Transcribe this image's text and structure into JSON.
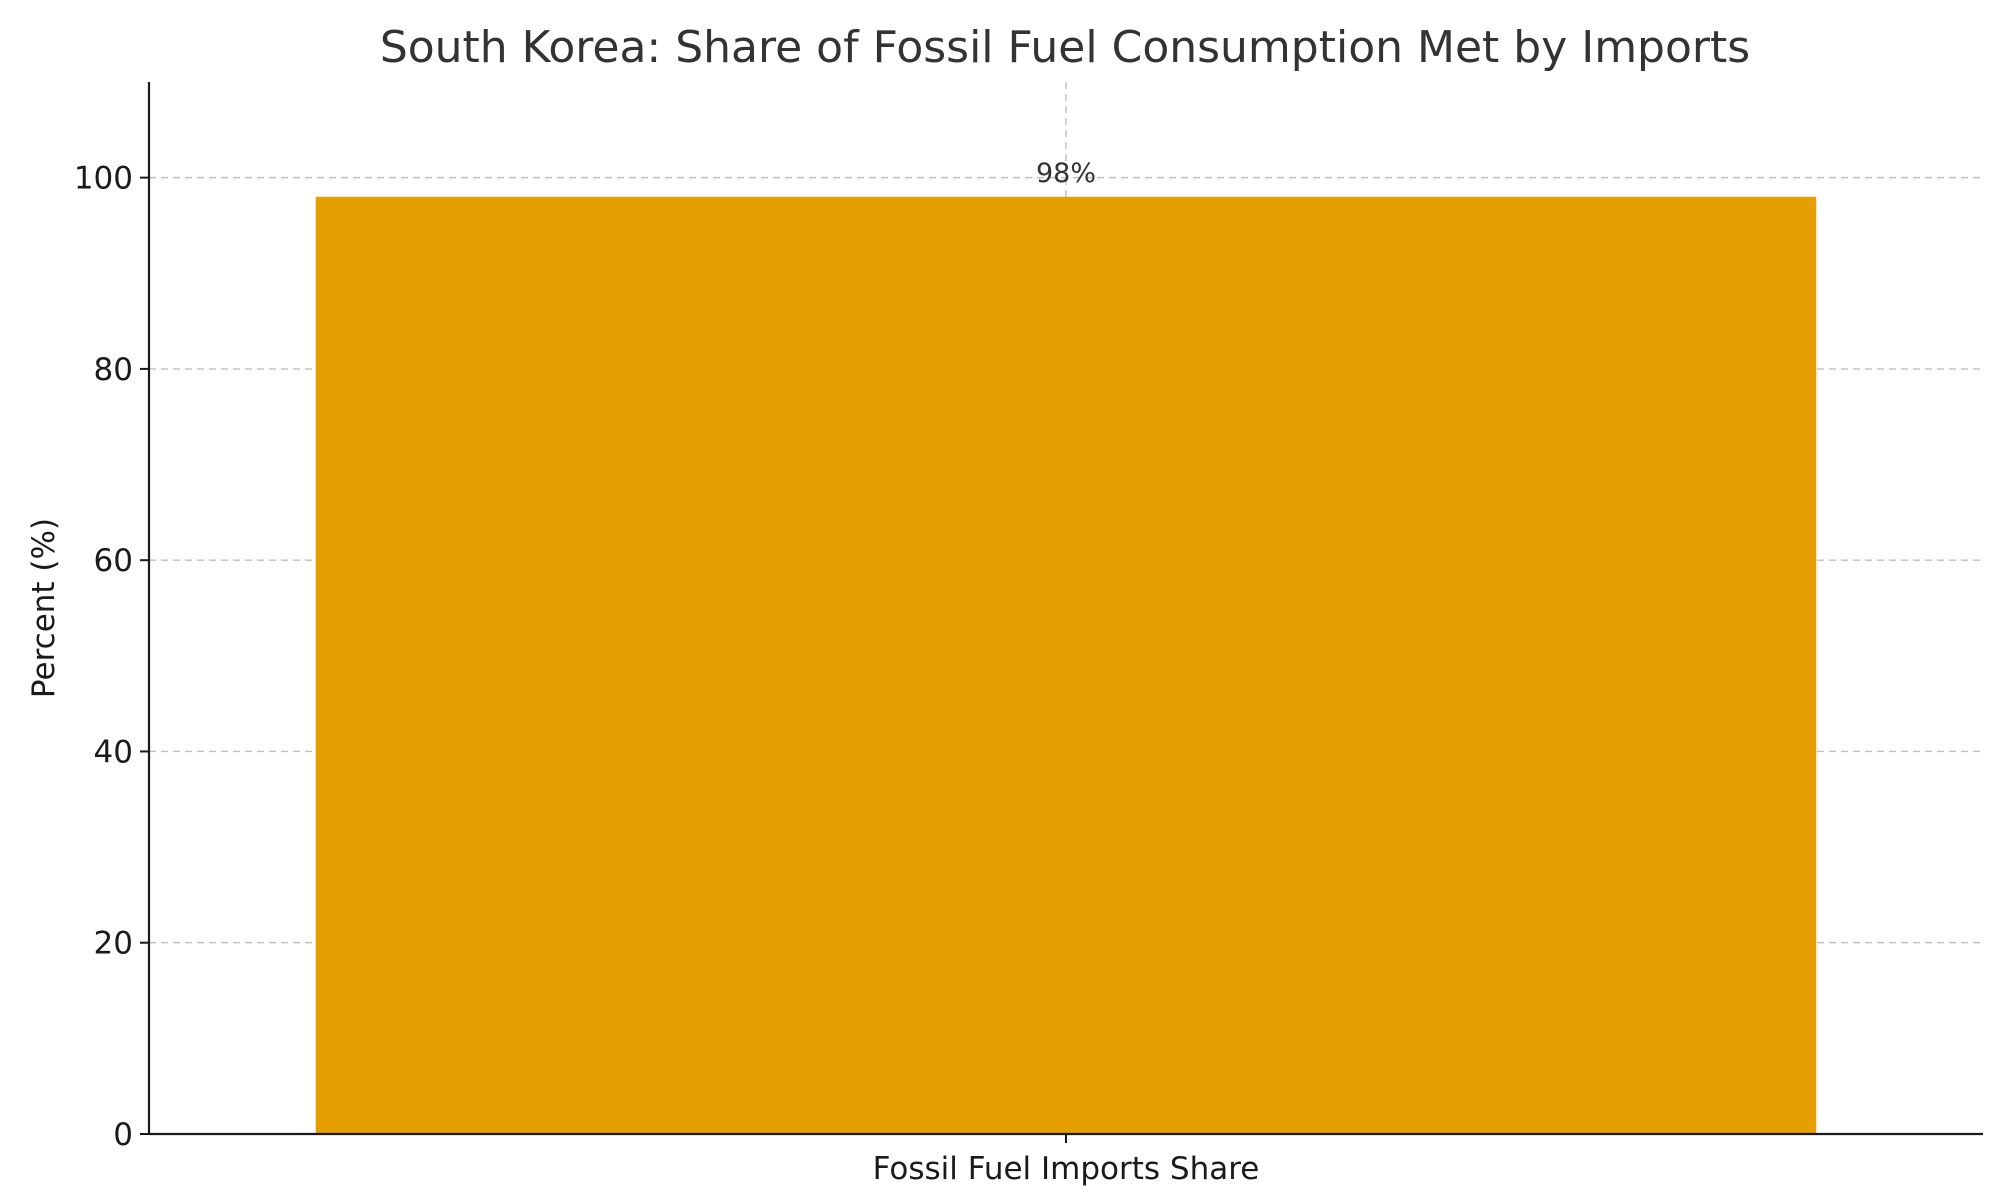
{
  "chart_data": {
    "type": "bar",
    "title": "South Korea: Share of Fossil Fuel Consumption Met by Imports",
    "xlabel": "",
    "ylabel": "Percent (%)",
    "categories": [
      "Fossil Fuel Imports Share"
    ],
    "values": [
      98
    ],
    "data_labels": [
      "98%"
    ],
    "ylim": [
      0,
      110
    ],
    "yticks": [
      0,
      20,
      40,
      60,
      80,
      100
    ],
    "ytick_labels": [
      "0",
      "20",
      "40",
      "60",
      "80",
      "100"
    ],
    "grid": true,
    "bar_color": "#E69F00"
  }
}
